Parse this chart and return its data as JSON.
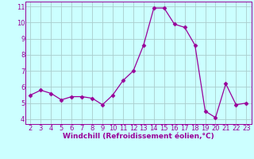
{
  "x": [
    2,
    3,
    4,
    5,
    6,
    7,
    8,
    9,
    10,
    11,
    12,
    13,
    14,
    15,
    16,
    17,
    18,
    19,
    20,
    21,
    22,
    23
  ],
  "y": [
    5.5,
    5.8,
    5.6,
    5.2,
    5.4,
    5.4,
    5.3,
    4.9,
    5.5,
    6.4,
    7.0,
    8.6,
    10.9,
    10.9,
    9.9,
    9.7,
    8.6,
    4.5,
    4.1,
    6.2,
    4.9,
    5.0
  ],
  "line_color": "#990099",
  "marker": "D",
  "marker_size": 2.5,
  "bg_color": "#ccffff",
  "grid_color": "#aacccc",
  "xlabel": "Windchill (Refroidissement éolien,°C)",
  "xlabel_color": "#990099",
  "tick_color": "#990099",
  "xlim": [
    1.5,
    23.5
  ],
  "ylim": [
    3.7,
    11.3
  ],
  "yticks": [
    4,
    5,
    6,
    7,
    8,
    9,
    10,
    11
  ],
  "xticks": [
    2,
    3,
    4,
    5,
    6,
    7,
    8,
    9,
    10,
    11,
    12,
    13,
    14,
    15,
    16,
    17,
    18,
    19,
    20,
    21,
    22,
    23
  ],
  "tick_fontsize": 6,
  "xlabel_fontsize": 6.5
}
